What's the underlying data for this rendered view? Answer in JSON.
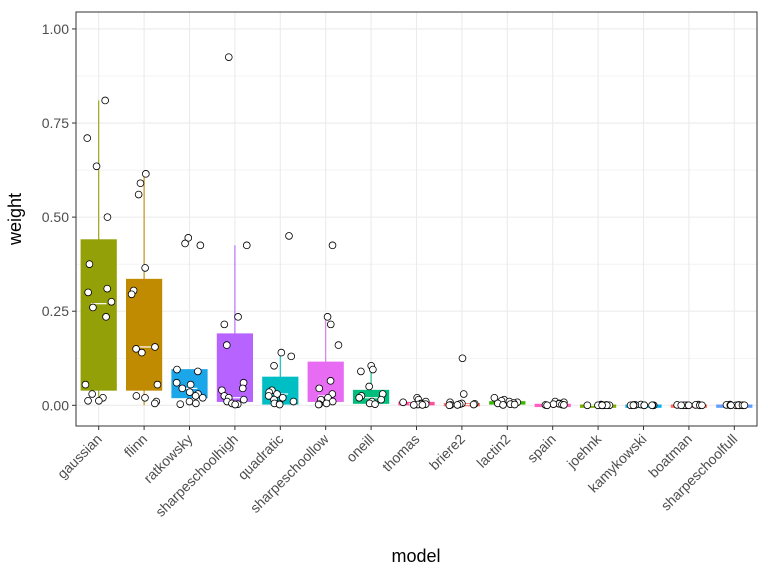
{
  "chart_data": {
    "type": "boxplot",
    "xlabel": "model",
    "ylabel": "weight",
    "ylim": [
      -0.055,
      1.045
    ],
    "yticks": [
      0.0,
      0.25,
      0.5,
      0.75,
      1.0
    ],
    "ytick_labels": [
      "0.00",
      "0.25",
      "0.50",
      "0.75",
      "1.00"
    ],
    "grid": true,
    "legend": "none",
    "series": [
      {
        "category": "gaussian",
        "color": "#93A008",
        "q1": 0.04,
        "median": 0.27,
        "q3": 0.44,
        "whisker_low": 0.012,
        "whisker_high": 0.81,
        "points": [
          0.81,
          0.71,
          0.635,
          0.5,
          0.375,
          0.31,
          0.3,
          0.275,
          0.26,
          0.235,
          0.055,
          0.03,
          0.02,
          0.012,
          0.012
        ]
      },
      {
        "category": "flinn",
        "color": "#C08B00",
        "q1": 0.04,
        "median": 0.155,
        "q3": 0.335,
        "whisker_low": 0.0,
        "whisker_high": 0.615,
        "points": [
          0.615,
          0.59,
          0.56,
          0.365,
          0.305,
          0.295,
          0.155,
          0.15,
          0.14,
          0.055,
          0.025,
          0.02,
          0.01,
          0.005
        ]
      },
      {
        "category": "ratkowsky",
        "color": "#1AA6E8",
        "q1": 0.02,
        "median": 0.045,
        "q3": 0.095,
        "whisker_low": 0.0,
        "whisker_high": 0.095,
        "points": [
          0.445,
          0.43,
          0.425,
          0.095,
          0.09,
          0.06,
          0.055,
          0.045,
          0.035,
          0.03,
          0.025,
          0.02,
          0.01,
          0.005,
          0.003
        ]
      },
      {
        "category": "sharpeschoolhigh",
        "color": "#B763FF",
        "q1": 0.01,
        "median": 0.02,
        "q3": 0.19,
        "whisker_low": 0.0,
        "whisker_high": 0.425,
        "points": [
          0.925,
          0.425,
          0.235,
          0.215,
          0.16,
          0.06,
          0.045,
          0.04,
          0.025,
          0.02,
          0.015,
          0.01,
          0.005,
          0.003,
          0.002
        ]
      },
      {
        "category": "quadratic",
        "color": "#00BFC4",
        "q1": 0.003,
        "median": 0.03,
        "q3": 0.075,
        "whisker_low": 0.0,
        "whisker_high": 0.14,
        "points": [
          0.45,
          0.14,
          0.13,
          0.105,
          0.04,
          0.035,
          0.03,
          0.025,
          0.02,
          0.015,
          0.01,
          0.005,
          0.003,
          0.002
        ]
      },
      {
        "category": "sharpeschoollow",
        "color": "#E76BF3",
        "q1": 0.01,
        "median": 0.025,
        "q3": 0.115,
        "whisker_low": 0.0,
        "whisker_high": 0.235,
        "points": [
          0.425,
          0.235,
          0.215,
          0.16,
          0.065,
          0.045,
          0.03,
          0.02,
          0.015,
          0.01,
          0.005,
          0.003,
          0.002
        ]
      },
      {
        "category": "oneill",
        "color": "#00BF7D",
        "q1": 0.005,
        "median": 0.02,
        "q3": 0.04,
        "whisker_low": 0.0,
        "whisker_high": 0.095,
        "points": [
          0.105,
          0.095,
          0.09,
          0.05,
          0.03,
          0.025,
          0.02,
          0.015,
          0.01,
          0.005,
          0.003
        ]
      },
      {
        "category": "thomas",
        "color": "#FF4E9D",
        "q1": 0.001,
        "median": 0.004,
        "q3": 0.008,
        "whisker_low": 0.0,
        "whisker_high": 0.02,
        "points": [
          0.02,
          0.015,
          0.01,
          0.008,
          0.005,
          0.004,
          0.003,
          0.002,
          0.001,
          0.001
        ]
      },
      {
        "category": "briere2",
        "color": "#F8766D",
        "q1": 0.0,
        "median": 0.002,
        "q3": 0.005,
        "whisker_low": 0.0,
        "whisker_high": 0.01,
        "points": [
          0.125,
          0.03,
          0.008,
          0.005,
          0.004,
          0.003,
          0.002,
          0.001,
          0.001,
          0.0
        ]
      },
      {
        "category": "lactin2",
        "color": "#39B600",
        "q1": 0.003,
        "median": 0.006,
        "q3": 0.01,
        "whisker_low": 0.0,
        "whisker_high": 0.02,
        "points": [
          0.02,
          0.015,
          0.012,
          0.01,
          0.008,
          0.006,
          0.005,
          0.003,
          0.002,
          0.001
        ]
      },
      {
        "category": "spain",
        "color": "#FF61C3",
        "q1": 0.0,
        "median": 0.002,
        "q3": 0.003,
        "whisker_low": 0.0,
        "whisker_high": 0.008,
        "points": [
          0.01,
          0.008,
          0.005,
          0.004,
          0.003,
          0.002,
          0.001,
          0.001,
          0.0
        ]
      },
      {
        "category": "joehnk",
        "color": "#7CAE00",
        "q1": 0.0,
        "median": 0.0,
        "q3": 0.001,
        "whisker_low": 0.0,
        "whisker_high": 0.002,
        "points": [
          0.002,
          0.001,
          0.001,
          0.0,
          0.0,
          0.0,
          0.0,
          0.0,
          0.0,
          0.0
        ]
      },
      {
        "category": "kamykowski",
        "color": "#00B0F6",
        "q1": 0.0,
        "median": 0.0,
        "q3": 0.001,
        "whisker_low": 0.0,
        "whisker_high": 0.002,
        "points": [
          0.002,
          0.001,
          0.001,
          0.0,
          0.0,
          0.0,
          0.0,
          0.0,
          0.0,
          0.0
        ]
      },
      {
        "category": "boatman",
        "color": "#FF6C5C",
        "q1": 0.0,
        "median": 0.0,
        "q3": 0.001,
        "whisker_low": 0.0,
        "whisker_high": 0.002,
        "points": [
          0.002,
          0.001,
          0.001,
          0.0,
          0.0,
          0.0,
          0.0,
          0.0,
          0.0
        ]
      },
      {
        "category": "sharpeschoolfull",
        "color": "#619CFF",
        "q1": 0.0,
        "median": 0.0,
        "q3": 0.001,
        "whisker_low": 0.0,
        "whisker_high": 0.002,
        "points": [
          0.002,
          0.001,
          0.001,
          0.0,
          0.0,
          0.0,
          0.0,
          0.0,
          0.0,
          0.0,
          0.0
        ]
      }
    ]
  }
}
